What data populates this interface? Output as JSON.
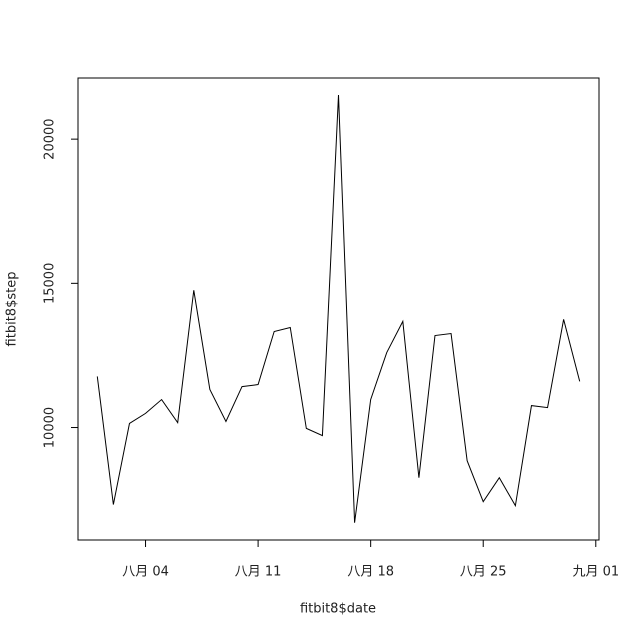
{
  "chart_data": {
    "type": "line",
    "x_label": "fitbit8$date",
    "y_label": "fitbit8$step",
    "x": [
      "08-01",
      "08-02",
      "08-03",
      "08-04",
      "08-05",
      "08-06",
      "08-07",
      "08-08",
      "08-09",
      "08-10",
      "08-11",
      "08-12",
      "08-13",
      "08-14",
      "08-15",
      "08-16",
      "08-17",
      "08-18",
      "08-19",
      "08-20",
      "08-21",
      "08-22",
      "08-23",
      "08-24",
      "08-25",
      "08-26",
      "08-27",
      "08-28",
      "08-29",
      "08-30",
      "08-31"
    ],
    "series": [
      {
        "name": "fitbit8$step",
        "color": "#000000",
        "values": [
          11770,
          7330,
          10140,
          10490,
          10970,
          10170,
          14760,
          11320,
          10210,
          11420,
          11490,
          13330,
          13470,
          9970,
          9720,
          21530,
          6700,
          10970,
          12600,
          13680,
          8260,
          13190,
          13260,
          8850,
          7430,
          8260,
          7290,
          10760,
          10690,
          13750,
          11600
        ]
      }
    ],
    "xticks": [
      {
        "value": "08-04",
        "label": "八月 04"
      },
      {
        "value": "08-11",
        "label": "八月 11"
      },
      {
        "value": "08-18",
        "label": "八月 18"
      },
      {
        "value": "08-25",
        "label": "八月 25"
      },
      {
        "value": "09-01",
        "label": "九月 01"
      }
    ],
    "ylim": [
      6100,
      22120
    ],
    "yticks": [
      10000,
      15000,
      20000
    ]
  }
}
